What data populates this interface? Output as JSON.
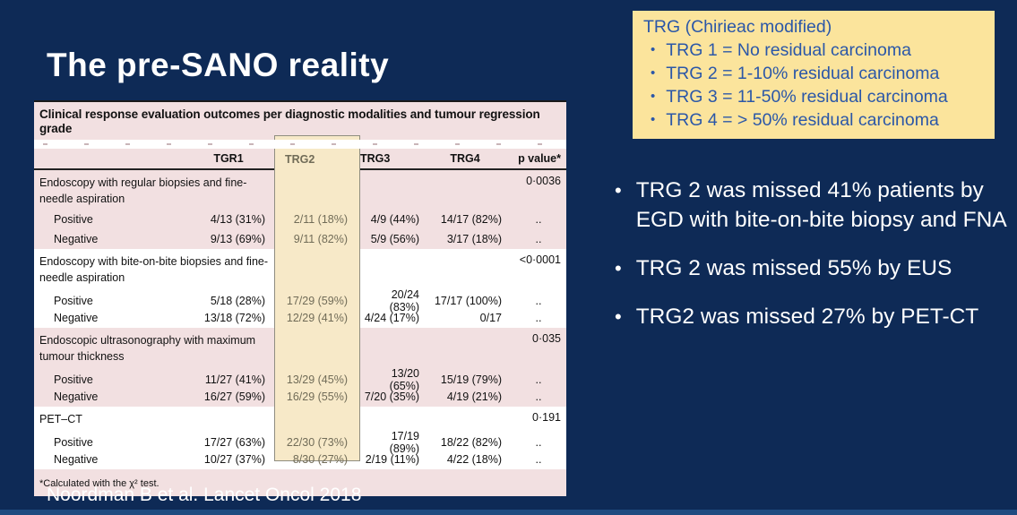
{
  "slide": {
    "title": "The pre-SANO reality",
    "citation": "Noordman B et al. Lancet Oncol 2018"
  },
  "trg_box": {
    "title": "TRG (Chirieac modified)",
    "items": [
      "TRG 1 = No residual carcinoma",
      "TRG 2 = 1-10% residual carcinoma",
      "TRG 3 = 11-50% residual carcinoma",
      "TRG 4 = > 50% residual carcinoma"
    ],
    "background_color": "#FBE49C",
    "text_color": "#2B57A8"
  },
  "bullets": [
    "TRG 2 was missed 41% patients by EGD with bite-on-bite biopsy and FNA",
    "TRG 2 was missed 55% by EUS",
    "TRG2 was missed 27% by PET-CT"
  ],
  "table": {
    "title": "Clinical response evaluation outcomes per diagnostic modalities and tumour regression grade",
    "columns": {
      "tgr1": "TGR1",
      "trg2": "TRG2",
      "trg3": "TRG3",
      "trg4": "TRG4",
      "p": "p value*"
    },
    "highlighted_column": "TRG2",
    "highlight_color": "#F7E9C8",
    "pink_color": "#F2E0E1",
    "footnote": "*Calculated with the χ² test.",
    "sections": [
      {
        "label": "Endoscopy with regular biopsies and fine-needle aspiration",
        "p": "0·0036",
        "rows": [
          {
            "label": "Positive",
            "tgr1": "4/13 (31%)",
            "trg2": "2/11 (18%)",
            "trg3": "4/9 (44%)",
            "trg4": "14/17 (82%)",
            "p": ".."
          },
          {
            "label": "Negative",
            "tgr1": "9/13 (69%)",
            "trg2": "9/11 (82%)",
            "trg3": "5/9 (56%)",
            "trg4": "3/17 (18%)",
            "p": ".."
          }
        ]
      },
      {
        "label": "Endoscopy with bite-on-bite biopsies and fine-needle aspiration",
        "p": "<0·0001",
        "rows": [
          {
            "label": "Positive",
            "tgr1": "5/18 (28%)",
            "trg2": "17/29 (59%)",
            "trg3": "20/24 (83%)",
            "trg4": "17/17 (100%)",
            "p": ".."
          },
          {
            "label": "Negative",
            "tgr1": "13/18 (72%)",
            "trg2": "12/29 (41%)",
            "trg3": "4/24 (17%)",
            "trg4": "0/17",
            "p": ".."
          }
        ]
      },
      {
        "label": "Endoscopic ultrasonography with maximum tumour thickness",
        "p": "0·035",
        "rows": [
          {
            "label": "Positive",
            "tgr1": "11/27 (41%)",
            "trg2": "13/29 (45%)",
            "trg3": "13/20 (65%)",
            "trg4": "15/19 (79%)",
            "p": ".."
          },
          {
            "label": "Negative",
            "tgr1": "16/27 (59%)",
            "trg2": "16/29 (55%)",
            "trg3": "7/20 (35%)",
            "trg4": "4/19 (21%)",
            "p": ".."
          }
        ]
      },
      {
        "label": "PET–CT",
        "p": "0·191",
        "rows": [
          {
            "label": "Positive",
            "tgr1": "17/27 (63%)",
            "trg2": "22/30 (73%)",
            "trg3": "17/19 (89%)",
            "trg4": "18/22 (82%)",
            "p": ".."
          },
          {
            "label": "Negative",
            "tgr1": "10/27 (37%)",
            "trg2": "8/30 (27%)",
            "trg3": "2/19 (11%)",
            "trg4": "4/22 (18%)",
            "p": ".."
          }
        ]
      }
    ]
  },
  "colors": {
    "background": "#0E2A56",
    "bottom_bar": "#1F4B80"
  }
}
